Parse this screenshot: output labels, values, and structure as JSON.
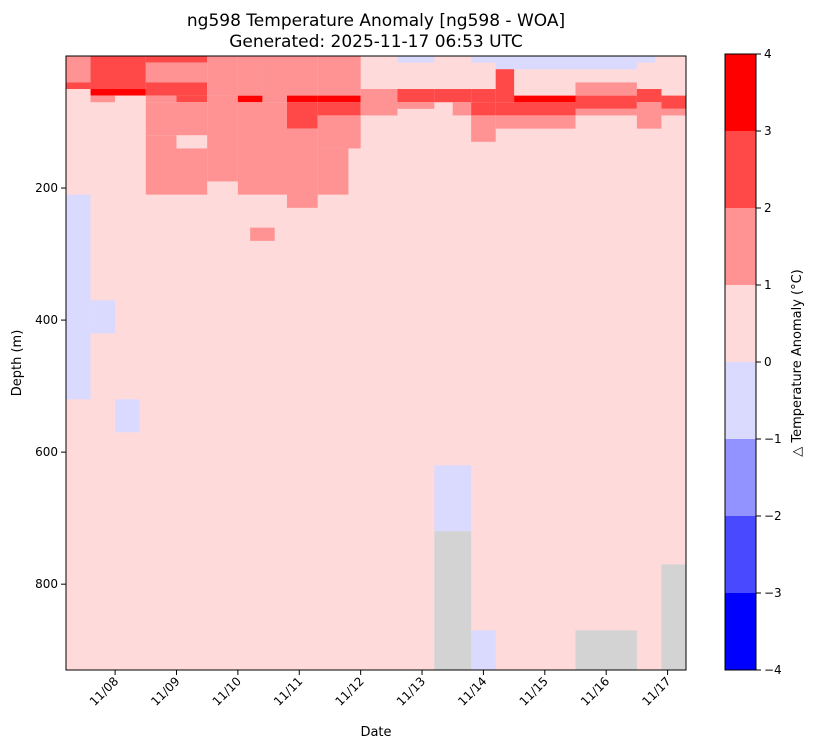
{
  "chart_data": {
    "type": "heatmap",
    "title": "ng598 Temperature Anomaly [ng598 - WOA]",
    "subtitle": "Generated: 2025-11-17 06:53 UTC",
    "xlabel": "Date",
    "ylabel": "Depth (m)",
    "colorbar_label": "△ Temperature Anomaly (°C)",
    "y_axis_inverted": true,
    "y_range": [
      0,
      930
    ],
    "y_ticks": [
      200,
      400,
      600,
      800
    ],
    "x_ticks": [
      "11/08",
      "11/09",
      "11/10",
      "11/11",
      "11/12",
      "11/13",
      "11/14",
      "11/15",
      "11/16",
      "11/17"
    ],
    "x_range_days": [
      7.2,
      17.3
    ],
    "colorbar": {
      "ticks": [
        -4,
        -3,
        -2,
        -1,
        0,
        1,
        2,
        3,
        4
      ],
      "levels": [
        {
          "min": -4,
          "max": -3,
          "color": "#0000ff"
        },
        {
          "min": -3,
          "max": -2,
          "color": "#4949ff"
        },
        {
          "min": -2,
          "max": -1,
          "color": "#9393ff"
        },
        {
          "min": -1,
          "max": 0,
          "color": "#dadaff"
        },
        {
          "min": 0,
          "max": 1,
          "color": "#ffdada"
        },
        {
          "min": 1,
          "max": 2,
          "color": "#ff9393"
        },
        {
          "min": 2,
          "max": 3,
          "color": "#ff4949"
        },
        {
          "min": 3,
          "max": 4,
          "color": "#ff0000"
        }
      ]
    },
    "missing_color": "#d3d3d3",
    "background_level": 0.5,
    "cells": [
      {
        "x0": 7.2,
        "x1": 7.6,
        "d0": 0,
        "d1": 40,
        "v": 1.5
      },
      {
        "x0": 7.2,
        "x1": 7.6,
        "d0": 40,
        "d1": 50,
        "v": 2.5
      },
      {
        "x0": 7.6,
        "x1": 8.5,
        "d0": 0,
        "d1": 50,
        "v": 2.5
      },
      {
        "x0": 7.6,
        "x1": 8.5,
        "d0": 50,
        "d1": 60,
        "v": 3.5
      },
      {
        "x0": 7.6,
        "x1": 8.0,
        "d0": 60,
        "d1": 70,
        "v": 1.5
      },
      {
        "x0": 8.0,
        "x1": 8.5,
        "d0": 60,
        "d1": 80,
        "v": 0.5
      },
      {
        "x0": 8.5,
        "x1": 9.5,
        "d0": 0,
        "d1": 10,
        "v": 2.5
      },
      {
        "x0": 8.5,
        "x1": 9.5,
        "d0": 10,
        "d1": 40,
        "v": 1.5
      },
      {
        "x0": 8.5,
        "x1": 9.5,
        "d0": 40,
        "d1": 60,
        "v": 2.5
      },
      {
        "x0": 9.0,
        "x1": 9.5,
        "d0": 60,
        "d1": 70,
        "v": 2.5
      },
      {
        "x0": 8.5,
        "x1": 9.0,
        "d0": 60,
        "d1": 70,
        "v": 1.5
      },
      {
        "x0": 8.5,
        "x1": 9.5,
        "d0": 70,
        "d1": 120,
        "v": 1.5
      },
      {
        "x0": 8.5,
        "x1": 9.0,
        "d0": 120,
        "d1": 210,
        "v": 1.5
      },
      {
        "x0": 9.0,
        "x1": 9.5,
        "d0": 140,
        "d1": 210,
        "v": 1.5
      },
      {
        "x0": 9.5,
        "x1": 10.0,
        "d0": 0,
        "d1": 60,
        "v": 1.5
      },
      {
        "x0": 9.5,
        "x1": 10.0,
        "d0": 60,
        "d1": 190,
        "v": 1.5
      },
      {
        "x0": 10.0,
        "x1": 10.4,
        "d0": 60,
        "d1": 70,
        "v": 3.5
      },
      {
        "x0": 10.0,
        "x1": 10.4,
        "d0": 0,
        "d1": 60,
        "v": 1.5
      },
      {
        "x0": 10.0,
        "x1": 10.8,
        "d0": 70,
        "d1": 210,
        "v": 1.5
      },
      {
        "x0": 10.4,
        "x1": 10.8,
        "d0": 0,
        "d1": 70,
        "v": 1.5
      },
      {
        "x0": 10.8,
        "x1": 11.3,
        "d0": 0,
        "d1": 60,
        "v": 1.5
      },
      {
        "x0": 10.8,
        "x1": 11.3,
        "d0": 60,
        "d1": 70,
        "v": 3.5
      },
      {
        "x0": 10.8,
        "x1": 11.3,
        "d0": 70,
        "d1": 110,
        "v": 2.5
      },
      {
        "x0": 10.8,
        "x1": 11.3,
        "d0": 110,
        "d1": 230,
        "v": 1.5
      },
      {
        "x0": 11.3,
        "x1": 12.0,
        "d0": 0,
        "d1": 60,
        "v": 1.5
      },
      {
        "x0": 11.3,
        "x1": 12.0,
        "d0": 60,
        "d1": 70,
        "v": 3.5
      },
      {
        "x0": 11.3,
        "x1": 12.0,
        "d0": 70,
        "d1": 90,
        "v": 2.5
      },
      {
        "x0": 11.3,
        "x1": 12.0,
        "d0": 90,
        "d1": 140,
        "v": 1.5
      },
      {
        "x0": 11.3,
        "x1": 11.8,
        "d0": 140,
        "d1": 210,
        "v": 1.5
      },
      {
        "x0": 10.2,
        "x1": 10.6,
        "d0": 260,
        "d1": 280,
        "v": 1.5
      },
      {
        "x0": 12.0,
        "x1": 12.6,
        "d0": 50,
        "d1": 90,
        "v": 1.5
      },
      {
        "x0": 12.6,
        "x1": 13.2,
        "d0": 0,
        "d1": 10,
        "v": -0.5
      },
      {
        "x0": 12.6,
        "x1": 13.2,
        "d0": 50,
        "d1": 70,
        "v": 2.5
      },
      {
        "x0": 12.6,
        "x1": 13.2,
        "d0": 70,
        "d1": 80,
        "v": 1.5
      },
      {
        "x0": 13.2,
        "x1": 13.8,
        "d0": 50,
        "d1": 70,
        "v": 2.5
      },
      {
        "x0": 13.5,
        "x1": 13.8,
        "d0": 70,
        "d1": 90,
        "v": 1.5
      },
      {
        "x0": 13.8,
        "x1": 14.2,
        "d0": 0,
        "d1": 10,
        "v": -0.5
      },
      {
        "x0": 13.8,
        "x1": 14.2,
        "d0": 50,
        "d1": 70,
        "v": 2.5
      },
      {
        "x0": 13.8,
        "x1": 14.2,
        "d0": 70,
        "d1": 90,
        "v": 2.5
      },
      {
        "x0": 13.8,
        "x1": 14.2,
        "d0": 90,
        "d1": 130,
        "v": 1.5
      },
      {
        "x0": 14.2,
        "x1": 14.5,
        "d0": 0,
        "d1": 20,
        "v": -0.5
      },
      {
        "x0": 14.2,
        "x1": 14.5,
        "d0": 20,
        "d1": 70,
        "v": 2.5
      },
      {
        "x0": 14.2,
        "x1": 15.5,
        "d0": 70,
        "d1": 90,
        "v": 2.5
      },
      {
        "x0": 14.2,
        "x1": 15.5,
        "d0": 90,
        "d1": 110,
        "v": 1.5
      },
      {
        "x0": 14.5,
        "x1": 15.5,
        "d0": 0,
        "d1": 10,
        "v": -0.5
      },
      {
        "x0": 14.5,
        "x1": 15.5,
        "d0": 10,
        "d1": 20,
        "v": -0.5
      },
      {
        "x0": 14.5,
        "x1": 15.5,
        "d0": 60,
        "d1": 70,
        "v": 3.5
      },
      {
        "x0": 15.5,
        "x1": 16.5,
        "d0": 0,
        "d1": 20,
        "v": -0.5
      },
      {
        "x0": 15.5,
        "x1": 16.5,
        "d0": 40,
        "d1": 60,
        "v": 1.5
      },
      {
        "x0": 15.5,
        "x1": 16.5,
        "d0": 60,
        "d1": 80,
        "v": 2.5
      },
      {
        "x0": 15.5,
        "x1": 16.5,
        "d0": 80,
        "d1": 90,
        "v": 1.5
      },
      {
        "x0": 16.5,
        "x1": 16.8,
        "d0": 0,
        "d1": 10,
        "v": -0.5
      },
      {
        "x0": 16.5,
        "x1": 16.9,
        "d0": 50,
        "d1": 70,
        "v": 2.5
      },
      {
        "x0": 16.5,
        "x1": 16.9,
        "d0": 70,
        "d1": 110,
        "v": 1.5
      },
      {
        "x0": 16.9,
        "x1": 17.3,
        "d0": 60,
        "d1": 80,
        "v": 2.5
      },
      {
        "x0": 16.9,
        "x1": 17.3,
        "d0": 80,
        "d1": 90,
        "v": 1.5
      },
      {
        "x0": 7.2,
        "x1": 7.6,
        "d0": 210,
        "d1": 520,
        "v": -0.5
      },
      {
        "x0": 7.6,
        "x1": 8.0,
        "d0": 370,
        "d1": 420,
        "v": -0.5
      },
      {
        "x0": 8.0,
        "x1": 8.4,
        "d0": 520,
        "d1": 570,
        "v": -0.5
      },
      {
        "x0": 13.2,
        "x1": 13.8,
        "d0": 620,
        "d1": 720,
        "v": -0.5
      },
      {
        "x0": 13.8,
        "x1": 14.2,
        "d0": 870,
        "d1": 930,
        "v": -0.5
      }
    ],
    "missing_cells": [
      {
        "x0": 13.2,
        "x1": 13.8,
        "d0": 720,
        "d1": 930
      },
      {
        "x0": 15.5,
        "x1": 16.5,
        "d0": 870,
        "d1": 930
      },
      {
        "x0": 16.9,
        "x1": 17.3,
        "d0": 770,
        "d1": 930
      }
    ]
  }
}
